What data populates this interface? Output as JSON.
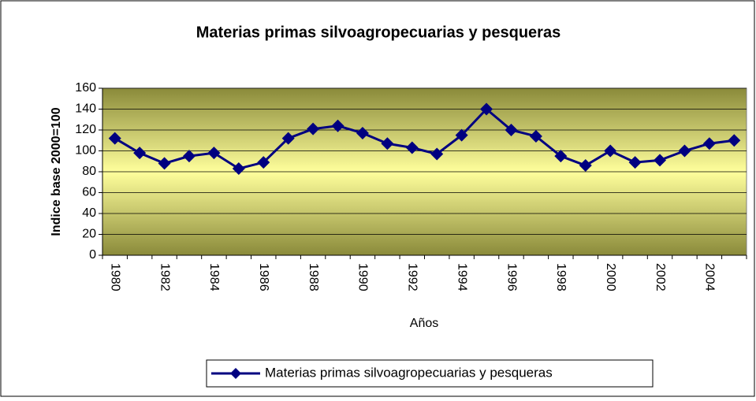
{
  "chart_data": {
    "type": "line",
    "title": "Materias primas silvoagropecuarias y pesqueras",
    "x_label": "Años",
    "y_label": "Indice base 2000=100",
    "categories": [
      "1980",
      null,
      "1982",
      null,
      "1984",
      null,
      "1986",
      null,
      "1988",
      null,
      "1990",
      null,
      "1992",
      null,
      "1994",
      null,
      "1996",
      null,
      "1998",
      null,
      "2000",
      null,
      "2002",
      null,
      "2004",
      null
    ],
    "series": [
      {
        "name": "Materias primas silvoagropecuarias y pesqueras",
        "color": "#000080",
        "values": [
          112,
          98,
          88,
          95,
          98,
          83,
          89,
          112,
          121,
          124,
          117,
          107,
          103,
          97,
          115,
          140,
          120,
          114,
          95,
          86,
          100,
          89,
          91,
          100,
          107,
          110
        ]
      }
    ],
    "ylim": [
      0,
      160
    ],
    "yticks": [
      0,
      20,
      40,
      60,
      80,
      100,
      120,
      140,
      160
    ],
    "grid": true,
    "legend": "bottom"
  }
}
